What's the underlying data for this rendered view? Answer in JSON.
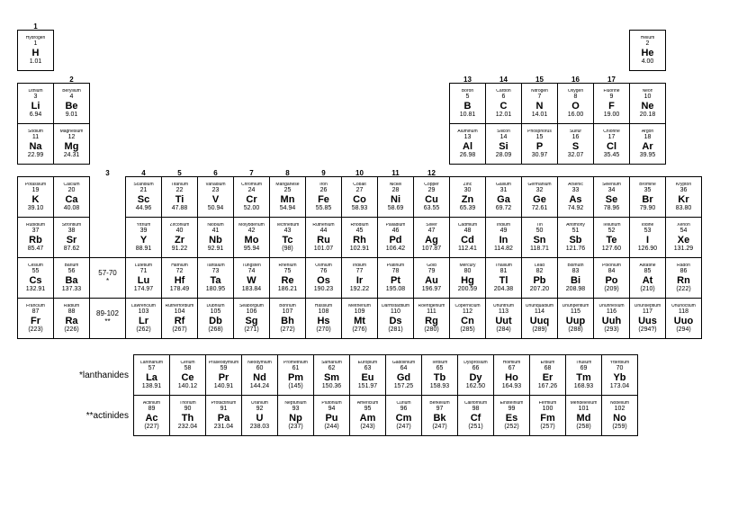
{
  "group_labels": [
    "1",
    "2",
    "3",
    "4",
    "5",
    "6",
    "7",
    "8",
    "9",
    "10",
    "11",
    "12",
    "13",
    "14",
    "15",
    "16",
    "17",
    ""
  ],
  "markers": {
    "la": "57-70\n*",
    "ac": "89-102\n**"
  },
  "series_labels": {
    "la": "*lanthanides",
    "ac": "**actinides"
  },
  "rows": [
    [
      [
        "Hydrogen",
        "1",
        "H",
        "1.01"
      ],
      null,
      null,
      null,
      null,
      null,
      null,
      null,
      null,
      null,
      null,
      null,
      null,
      null,
      null,
      null,
      null,
      [
        "Helium",
        "2",
        "He",
        "4.00"
      ]
    ],
    [
      [
        "Lithium",
        "3",
        "Li",
        "6.94"
      ],
      [
        "Beryllium",
        "4",
        "Be",
        "9.01"
      ],
      null,
      null,
      null,
      null,
      null,
      null,
      null,
      null,
      null,
      null,
      [
        "Boron",
        "5",
        "B",
        "10.81"
      ],
      [
        "Carbon",
        "6",
        "C",
        "12.01"
      ],
      [
        "Nitrogen",
        "7",
        "N",
        "14.01"
      ],
      [
        "Oxygen",
        "8",
        "O",
        "16.00"
      ],
      [
        "Fluorine",
        "9",
        "F",
        "19.00"
      ],
      [
        "Neon",
        "10",
        "Ne",
        "20.18"
      ]
    ],
    [
      [
        "Sodium",
        "11",
        "Na",
        "22.99"
      ],
      [
        "Magnesium",
        "12",
        "Mg",
        "24.31"
      ],
      null,
      null,
      null,
      null,
      null,
      null,
      null,
      null,
      null,
      null,
      [
        "Aluminum",
        "13",
        "Al",
        "26.98"
      ],
      [
        "Silicon",
        "14",
        "Si",
        "28.09"
      ],
      [
        "Phosphorus",
        "15",
        "P",
        "30.97"
      ],
      [
        "Sulfur",
        "16",
        "S",
        "32.07"
      ],
      [
        "Chlorine",
        "17",
        "Cl",
        "35.45"
      ],
      [
        "Argon",
        "18",
        "Ar",
        "39.95"
      ]
    ],
    [
      [
        "Potassium",
        "19",
        "K",
        "39.10"
      ],
      [
        "Calcium",
        "20",
        "Ca",
        "40.08"
      ],
      [
        "Scandium",
        "21",
        "Sc",
        "44.96"
      ],
      [
        "Titanium",
        "22",
        "Ti",
        "47.88"
      ],
      [
        "Vanadium",
        "23",
        "V",
        "50.94"
      ],
      [
        "Chromium",
        "24",
        "Cr",
        "52.00"
      ],
      [
        "Manganese",
        "25",
        "Mn",
        "54.94"
      ],
      [
        "Iron",
        "26",
        "Fe",
        "55.85"
      ],
      [
        "Cobalt",
        "27",
        "Co",
        "58.93"
      ],
      [
        "Nickel",
        "28",
        "Ni",
        "58.69"
      ],
      [
        "Copper",
        "29",
        "Cu",
        "63.55"
      ],
      [
        "Zinc",
        "30",
        "Zn",
        "65.39"
      ],
      [
        "Gallium",
        "31",
        "Ga",
        "69.72"
      ],
      [
        "Germanium",
        "32",
        "Ge",
        "72.61"
      ],
      [
        "Arsenic",
        "33",
        "As",
        "74.92"
      ],
      [
        "Selenium",
        "34",
        "Se",
        "78.96"
      ],
      [
        "Bromine",
        "35",
        "Br",
        "79.90"
      ],
      [
        "Krypton",
        "36",
        "Kr",
        "83.80"
      ]
    ],
    [
      [
        "Rubidium",
        "37",
        "Rb",
        "85.47"
      ],
      [
        "Strontium",
        "38",
        "Sr",
        "87.62"
      ],
      [
        "Yttrium",
        "39",
        "Y",
        "88.91"
      ],
      [
        "Zirconium",
        "40",
        "Zr",
        "91.22"
      ],
      [
        "Niobium",
        "41",
        "Nb",
        "92.91"
      ],
      [
        "Molybdenum",
        "42",
        "Mo",
        "95.94"
      ],
      [
        "Technetium",
        "43",
        "Tc",
        "(98)"
      ],
      [
        "Ruthenium",
        "44",
        "Ru",
        "101.07"
      ],
      [
        "Rhodium",
        "45",
        "Rh",
        "102.91"
      ],
      [
        "Palladium",
        "46",
        "Pd",
        "106.42"
      ],
      [
        "Silver",
        "47",
        "Ag",
        "107.87"
      ],
      [
        "Cadmium",
        "48",
        "Cd",
        "112.41"
      ],
      [
        "Indium",
        "49",
        "In",
        "114.82"
      ],
      [
        "Tin",
        "50",
        "Sn",
        "118.71"
      ],
      [
        "Antimony",
        "51",
        "Sb",
        "121.76"
      ],
      [
        "Tellurium",
        "52",
        "Te",
        "127.60"
      ],
      [
        "Iodine",
        "53",
        "I",
        "126.90"
      ],
      [
        "Xenon",
        "54",
        "Xe",
        "131.29"
      ]
    ],
    [
      [
        "Cesium",
        "55",
        "Cs",
        "132.91"
      ],
      [
        "Barium",
        "56",
        "Ba",
        "137.33"
      ],
      "MARKER_LA",
      [
        "Lutetium",
        "71",
        "Lu",
        "174.97"
      ],
      [
        "Hafnium",
        "72",
        "Hf",
        "178.49"
      ],
      [
        "Tantalum",
        "73",
        "Ta",
        "180.95"
      ],
      [
        "Tungsten",
        "74",
        "W",
        "183.84"
      ],
      [
        "Rhenium",
        "75",
        "Re",
        "186.21"
      ],
      [
        "Osmium",
        "76",
        "Os",
        "190.23"
      ],
      [
        "Iridium",
        "77",
        "Ir",
        "192.22"
      ],
      [
        "Platinum",
        "78",
        "Pt",
        "195.08"
      ],
      [
        "Gold",
        "79",
        "Au",
        "196.97"
      ],
      [
        "Mercury",
        "80",
        "Hg",
        "200.59"
      ],
      [
        "Thallium",
        "81",
        "Tl",
        "204.38"
      ],
      [
        "Lead",
        "82",
        "Pb",
        "207.20"
      ],
      [
        "Bismuth",
        "83",
        "Bi",
        "208.98"
      ],
      [
        "Polonium",
        "84",
        "Po",
        "(209)"
      ],
      [
        "Astatine",
        "85",
        "At",
        "(210)"
      ],
      [
        "Radon",
        "86",
        "Rn",
        "(222)"
      ]
    ],
    [
      [
        "Francium",
        "87",
        "Fr",
        "(223)"
      ],
      [
        "Radium",
        "88",
        "Ra",
        "(226)"
      ],
      "MARKER_AC",
      [
        "Lawrencium",
        "103",
        "Lr",
        "(262)"
      ],
      [
        "Rutherfordium",
        "104",
        "Rf",
        "(267)"
      ],
      [
        "Dubnium",
        "105",
        "Db",
        "(268)"
      ],
      [
        "Seaborgium",
        "106",
        "Sg",
        "(271)"
      ],
      [
        "Bohrium",
        "107",
        "Bh",
        "(272)"
      ],
      [
        "Hassium",
        "108",
        "Hs",
        "(270)"
      ],
      [
        "Meitnerium",
        "109",
        "Mt",
        "(276)"
      ],
      [
        "Darmstadtium",
        "110",
        "Ds",
        "(281)"
      ],
      [
        "Roentgenium",
        "111",
        "Rg",
        "(280)"
      ],
      [
        "Copernicium",
        "112",
        "Cn",
        "(285)"
      ],
      [
        "Ununtrium",
        "113",
        "Uut",
        "(284)"
      ],
      [
        "Ununquadium",
        "114",
        "Uuq",
        "(289)"
      ],
      [
        "Ununpentium",
        "115",
        "Uup",
        "(288)"
      ],
      [
        "Ununhexium",
        "116",
        "Uuh",
        "(293)"
      ],
      [
        "Ununseptium",
        "117",
        "Uus",
        "(294?)"
      ],
      [
        "Ununoctium",
        "118",
        "Uuo",
        "(294)"
      ]
    ]
  ],
  "lanthanides": [
    [
      "Lanthanum",
      "57",
      "La",
      "138.91"
    ],
    [
      "Cerium",
      "58",
      "Ce",
      "140.12"
    ],
    [
      "Praseodymium",
      "59",
      "Pr",
      "140.91"
    ],
    [
      "Neodymium",
      "60",
      "Nd",
      "144.24"
    ],
    [
      "Promethium",
      "61",
      "Pm",
      "(145)"
    ],
    [
      "Samarium",
      "62",
      "Sm",
      "150.36"
    ],
    [
      "Europium",
      "63",
      "Eu",
      "151.97"
    ],
    [
      "Gadolinium",
      "64",
      "Gd",
      "157.25"
    ],
    [
      "Terbium",
      "65",
      "Tb",
      "158.93"
    ],
    [
      "Dysprosium",
      "66",
      "Dy",
      "162.50"
    ],
    [
      "Holmium",
      "67",
      "Ho",
      "164.93"
    ],
    [
      "Erbium",
      "68",
      "Er",
      "167.26"
    ],
    [
      "Thulium",
      "69",
      "Tm",
      "168.93"
    ],
    [
      "Ytterbium",
      "70",
      "Yb",
      "173.04"
    ]
  ],
  "actinides": [
    [
      "Actinium",
      "89",
      "Ac",
      "(227)"
    ],
    [
      "Thorium",
      "90",
      "Th",
      "232.04"
    ],
    [
      "Protactinium",
      "91",
      "Pa",
      "231.04"
    ],
    [
      "Uranium",
      "92",
      "U",
      "238.03"
    ],
    [
      "Neptunium",
      "93",
      "Np",
      "(237)"
    ],
    [
      "Plutonium",
      "94",
      "Pu",
      "(244)"
    ],
    [
      "Americium",
      "95",
      "Am",
      "(243)"
    ],
    [
      "Curium",
      "96",
      "Cm",
      "(247)"
    ],
    [
      "Berkelium",
      "97",
      "Bk",
      "(247)"
    ],
    [
      "Californium",
      "98",
      "Cf",
      "(251)"
    ],
    [
      "Einsteinium",
      "99",
      "Es",
      "(252)"
    ],
    [
      "Fermium",
      "100",
      "Fm",
      "(257)"
    ],
    [
      "Mendelevium",
      "101",
      "Md",
      "(258)"
    ],
    [
      "Nobelium",
      "102",
      "No",
      "(259)"
    ]
  ]
}
